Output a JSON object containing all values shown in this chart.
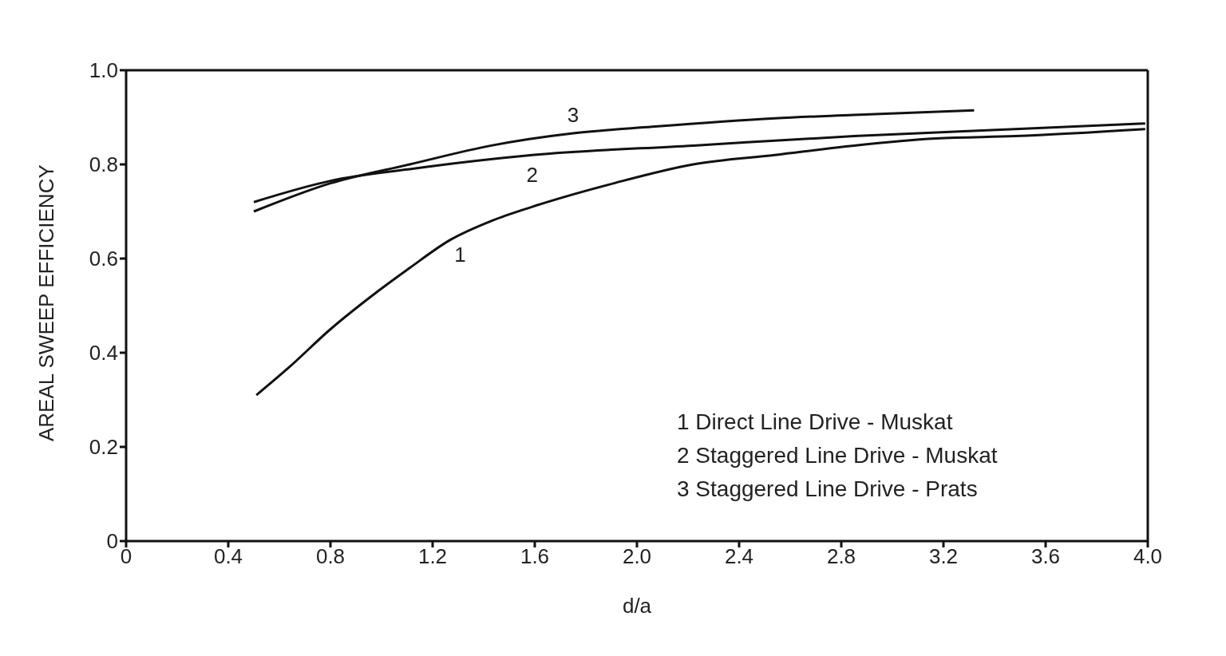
{
  "chart_data": {
    "type": "line",
    "xlabel": "d/a",
    "ylabel": "AREAL SWEEP EFFICIENCY",
    "xlim": [
      0,
      4
    ],
    "ylim": [
      0,
      1
    ],
    "xticks": [
      0,
      0.4,
      0.8,
      1.2,
      1.6,
      {
        "value": 2,
        "label": "2.0"
      },
      2.4,
      2.8,
      3.2,
      3.6,
      {
        "value": 4,
        "label": "4.0"
      }
    ],
    "yticks": [
      0,
      0.2,
      0.4,
      0.6,
      0.8,
      {
        "value": 1,
        "label": "1.0"
      }
    ],
    "legend": false,
    "marker": "none",
    "line_style": "solid",
    "series": [
      {
        "name": "1",
        "color": "#111111",
        "x": [
          0.51,
          0.64,
          0.8,
          0.96,
          1.11,
          1.27,
          1.43,
          1.59,
          1.91,
          2.22,
          2.54,
          2.85,
          3.17,
          3.48,
          3.99
        ],
        "values": [
          0.31,
          0.37,
          0.45,
          0.52,
          0.58,
          0.64,
          0.68,
          0.71,
          0.76,
          0.8,
          0.82,
          0.84,
          0.855,
          0.86,
          0.875
        ]
      },
      {
        "name": "2",
        "color": "#111111",
        "x": [
          0.5,
          0.8,
          1.11,
          1.59,
          2.22,
          2.85,
          3.48,
          3.99
        ],
        "values": [
          0.72,
          0.765,
          0.79,
          0.82,
          0.84,
          0.86,
          0.875,
          0.887
        ]
      },
      {
        "name": "3",
        "color": "#111111",
        "x": [
          0.5,
          0.8,
          1.11,
          1.43,
          1.75,
          2.06,
          2.54,
          2.85,
          3.32
        ],
        "values": [
          0.7,
          0.76,
          0.8,
          0.84,
          0.866,
          0.88,
          0.898,
          0.905,
          0.915
        ]
      }
    ],
    "annotations": [
      "1 Direct Line Drive - Muskat",
      "2 Staggered Line Drive - Muskat",
      "3 Staggered Line Drive - Prats"
    ]
  }
}
